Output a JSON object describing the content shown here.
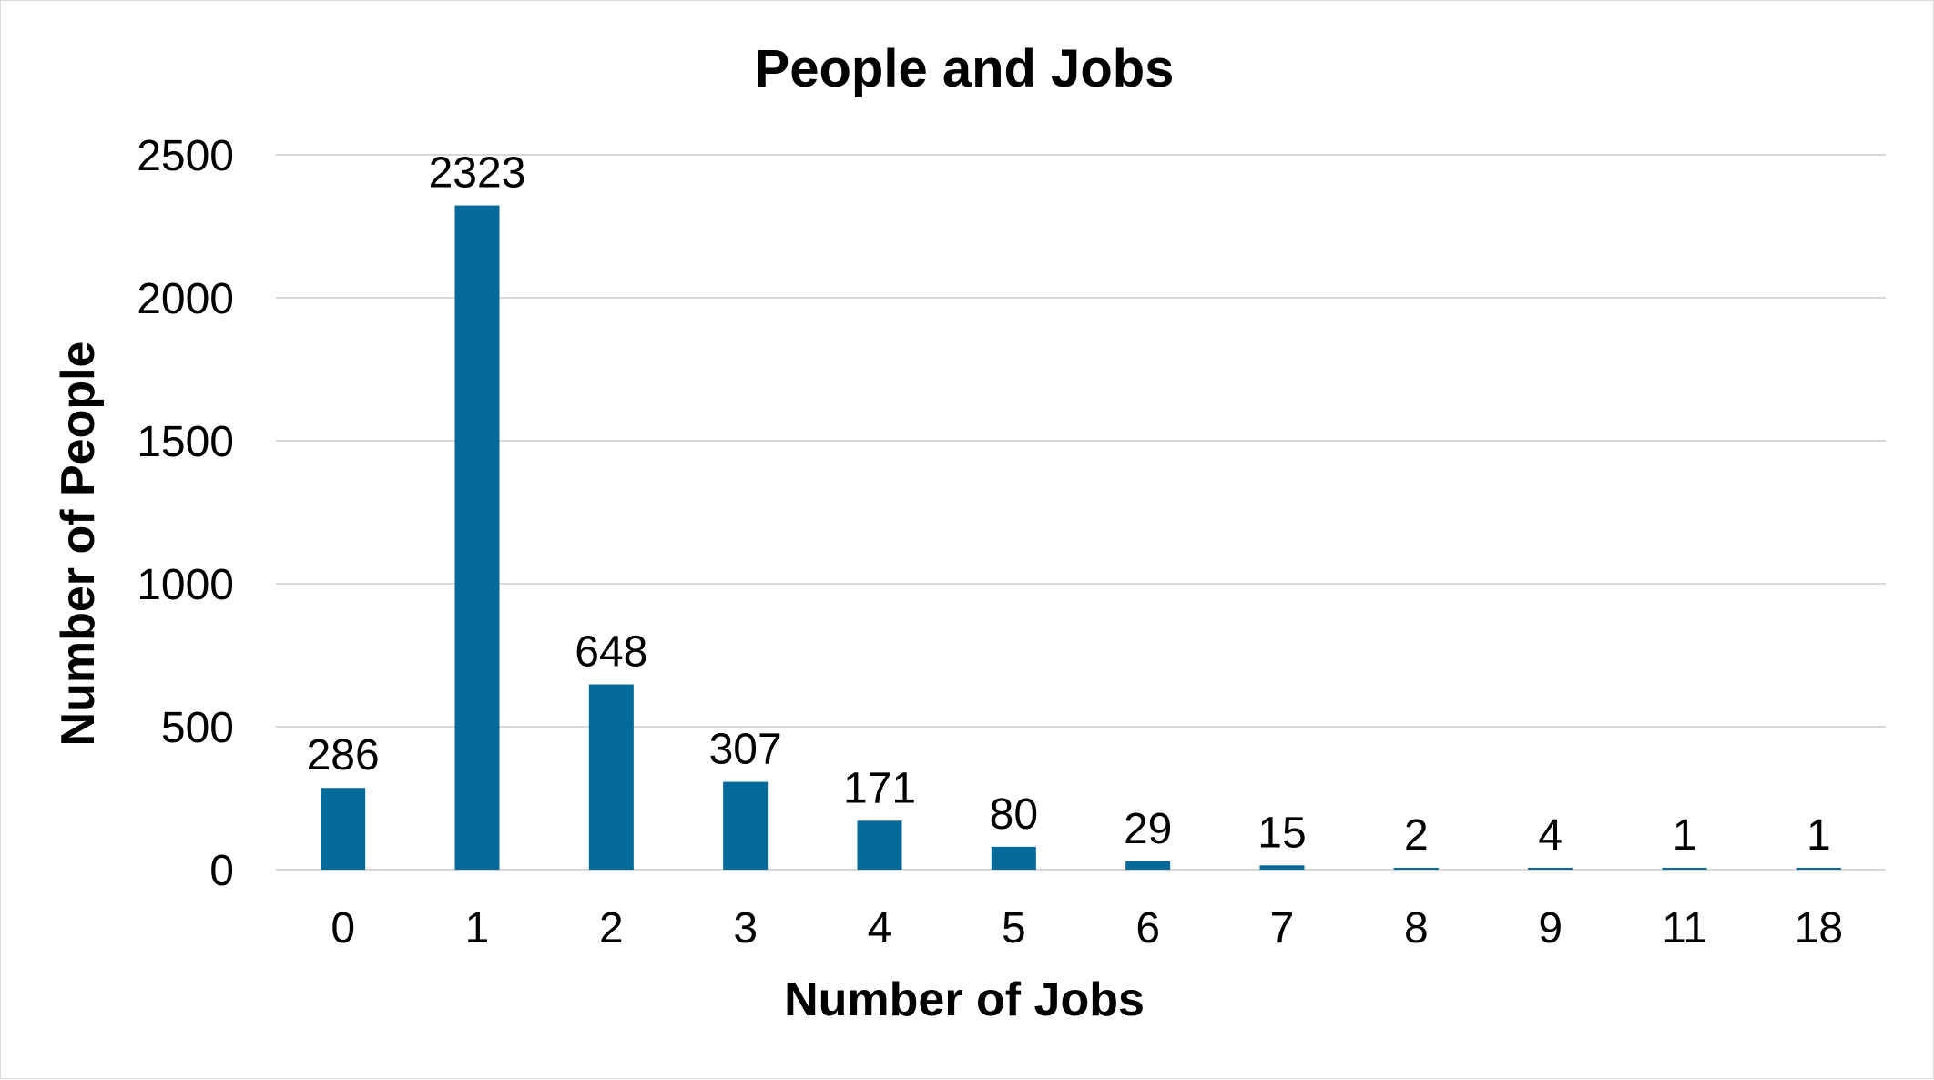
{
  "chart_data": {
    "type": "bar",
    "title": "People and Jobs",
    "xlabel": "Number of Jobs",
    "ylabel": "Number of People",
    "categories": [
      "0",
      "1",
      "2",
      "3",
      "4",
      "5",
      "6",
      "7",
      "8",
      "9",
      "11",
      "18"
    ],
    "values": [
      286,
      2323,
      648,
      307,
      171,
      80,
      29,
      15,
      2,
      4,
      1,
      1
    ],
    "ylim": [
      0,
      2500
    ],
    "yticks": [
      "0",
      "500",
      "1000",
      "1500",
      "2000",
      "2500"
    ],
    "data_labels": [
      "286",
      "2323",
      "648",
      "307",
      "171",
      "80",
      "29",
      "15",
      "2",
      "4",
      "1",
      "1"
    ],
    "grid": true,
    "legend": "none",
    "bar_color": "#046A9A"
  }
}
